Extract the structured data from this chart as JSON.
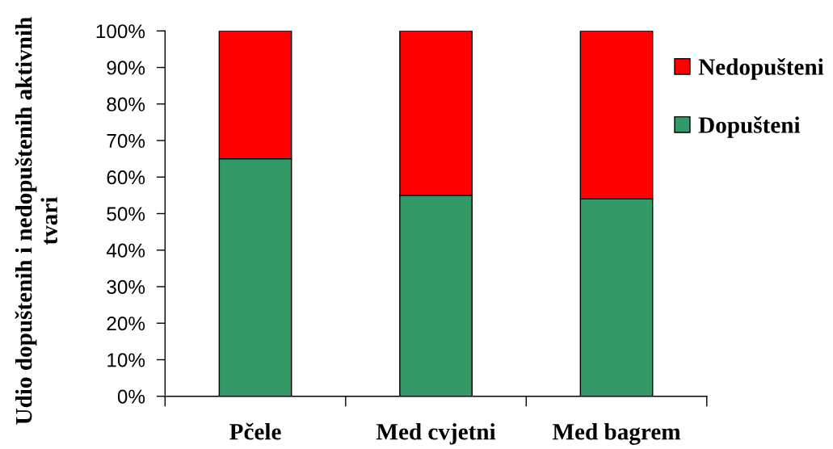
{
  "chart_data": {
    "type": "bar",
    "stacked": true,
    "categories": [
      "Pčele",
      "Med cvjetni",
      "Med bagrem"
    ],
    "series": [
      {
        "name": "Dopušteni",
        "color": "#339966",
        "values": [
          65,
          55,
          54
        ]
      },
      {
        "name": "Nedopušteni",
        "color": "#ff0000",
        "values": [
          35,
          45,
          46
        ]
      }
    ],
    "ylabel": "Udio dopuštenih i nedopuštenih aktivnih\ntvari",
    "ylim": [
      0,
      100
    ],
    "yticks": [
      {
        "value": 0,
        "label": "0%"
      },
      {
        "value": 10,
        "label": "10%"
      },
      {
        "value": 20,
        "label": "20%"
      },
      {
        "value": 30,
        "label": "30%"
      },
      {
        "value": 40,
        "label": "40%"
      },
      {
        "value": 50,
        "label": "50%"
      },
      {
        "value": 60,
        "label": "60%"
      },
      {
        "value": 70,
        "label": "70%"
      },
      {
        "value": 80,
        "label": "80%"
      },
      {
        "value": 90,
        "label": "90%"
      },
      {
        "value": 100,
        "label": "100%"
      }
    ],
    "legend": "right"
  }
}
